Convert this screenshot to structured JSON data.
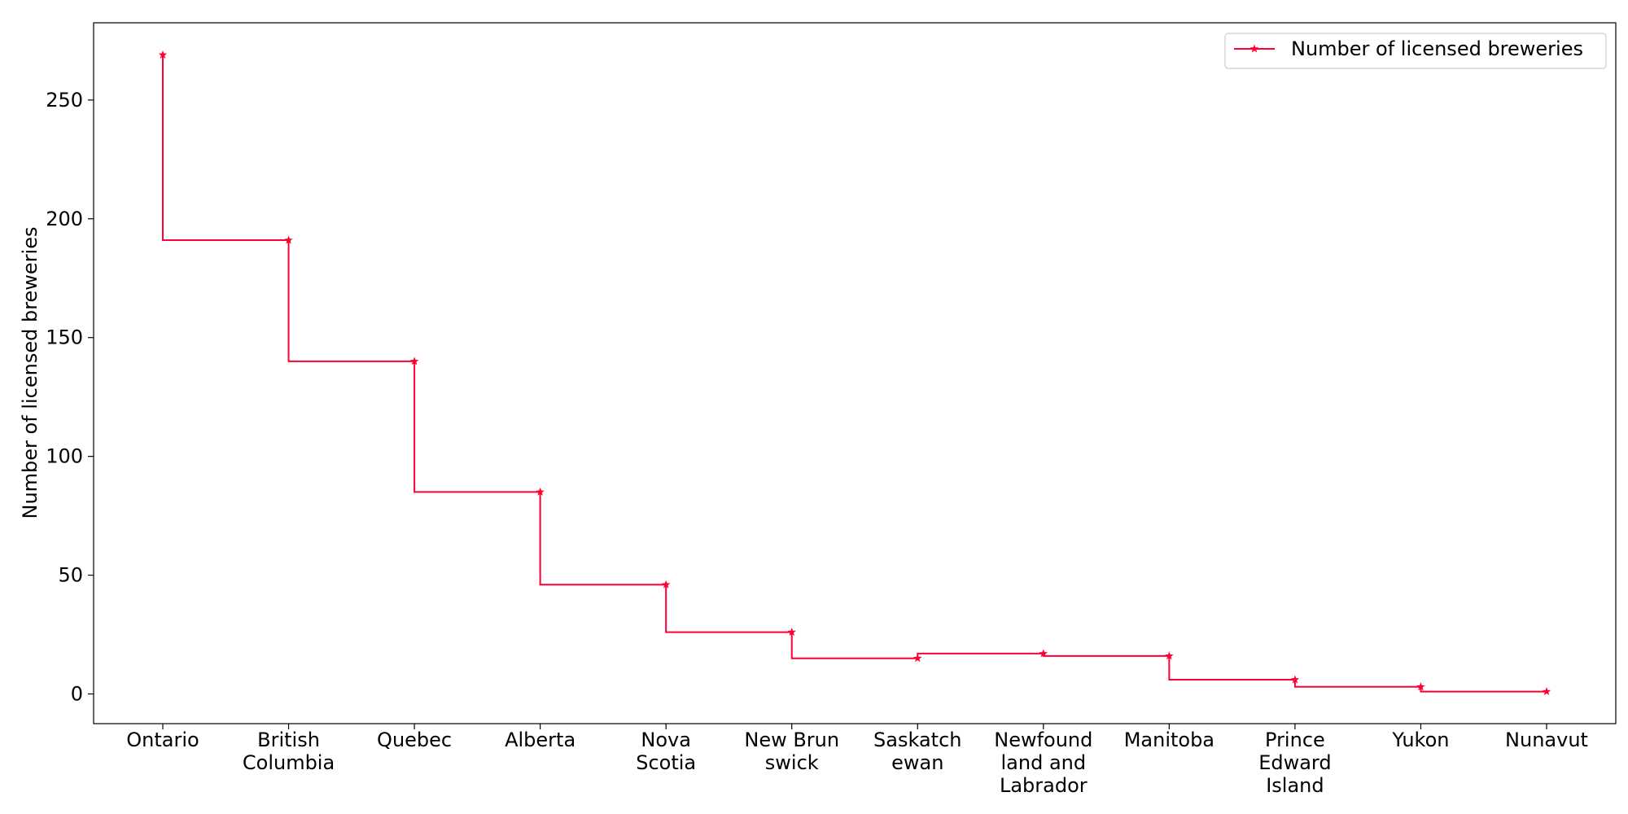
{
  "chart_data": {
    "type": "line",
    "step": "pre",
    "categories": [
      "Ontario",
      "British Columbia",
      "Quebec",
      "Alberta",
      "Nova Scotia",
      "New Brunswick",
      "Saskatchewan",
      "Newfoundland and Labrador",
      "Manitoba",
      "Prince Edward Island",
      "Yukon",
      "Nunavut"
    ],
    "category_tick_lines": [
      [
        "Ontario"
      ],
      [
        "British",
        "Columbia"
      ],
      [
        "Quebec"
      ],
      [
        "Alberta"
      ],
      [
        "Nova",
        "Scotia"
      ],
      [
        "New Brun",
        "swick"
      ],
      [
        "Saskatch",
        "ewan"
      ],
      [
        "Newfound",
        "land and",
        "Labrador"
      ],
      [
        "Manitoba"
      ],
      [
        "Prince",
        "Edward",
        "Island"
      ],
      [
        "Yukon"
      ],
      [
        "Nunavut"
      ]
    ],
    "series": [
      {
        "name": "Number of licensed breweries",
        "color": "#ff0033",
        "marker": "star",
        "values": [
          269,
          191,
          140,
          85,
          46,
          26,
          15,
          17,
          16,
          6,
          3,
          1
        ]
      }
    ],
    "xlabel": "",
    "ylabel": "Number of licensed breweries",
    "ylim": [
      -12.5,
      282.5
    ],
    "yticks": [
      0,
      50,
      100,
      150,
      200,
      250
    ],
    "grid": false,
    "legend": "top-right"
  }
}
